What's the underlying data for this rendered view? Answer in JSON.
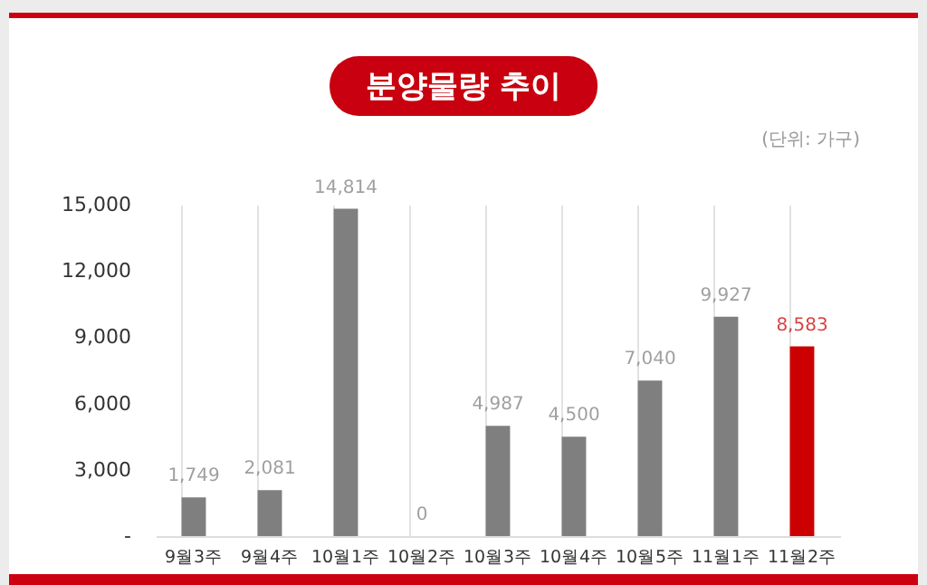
{
  "chart_data": {
    "type": "bar",
    "title": "분양물량 추이",
    "annotations": [
      "(단위: 가구)"
    ],
    "categories": [
      "9월3주",
      "9월4주",
      "10월1주",
      "10월2주",
      "10월3주",
      "10월4주",
      "10월5주",
      "11월1주",
      "11월2주"
    ],
    "values": [
      1749,
      2081,
      14814,
      0,
      4987,
      4500,
      7040,
      9927,
      8583
    ],
    "colors": [
      "#7f7f7f",
      "#7f7f7f",
      "#7f7f7f",
      "#7f7f7f",
      "#7f7f7f",
      "#7f7f7f",
      "#7f7f7f",
      "#7f7f7f",
      "#cc0000"
    ],
    "value_labels": [
      "1,749",
      "2,081",
      "14,814",
      "0",
      "4,987",
      "4,500",
      "7,040",
      "9,927",
      "8,583"
    ],
    "ylim": [
      0,
      15000
    ],
    "yticks": [
      {
        "value": 0,
        "label": "-"
      },
      {
        "value": 3000,
        "label": "3,000"
      },
      {
        "value": 6000,
        "label": "6,000"
      },
      {
        "value": 9000,
        "label": "9,000"
      },
      {
        "value": 12000,
        "label": "12,000"
      },
      {
        "value": 15000,
        "label": "15,000"
      }
    ],
    "grid": "x"
  }
}
